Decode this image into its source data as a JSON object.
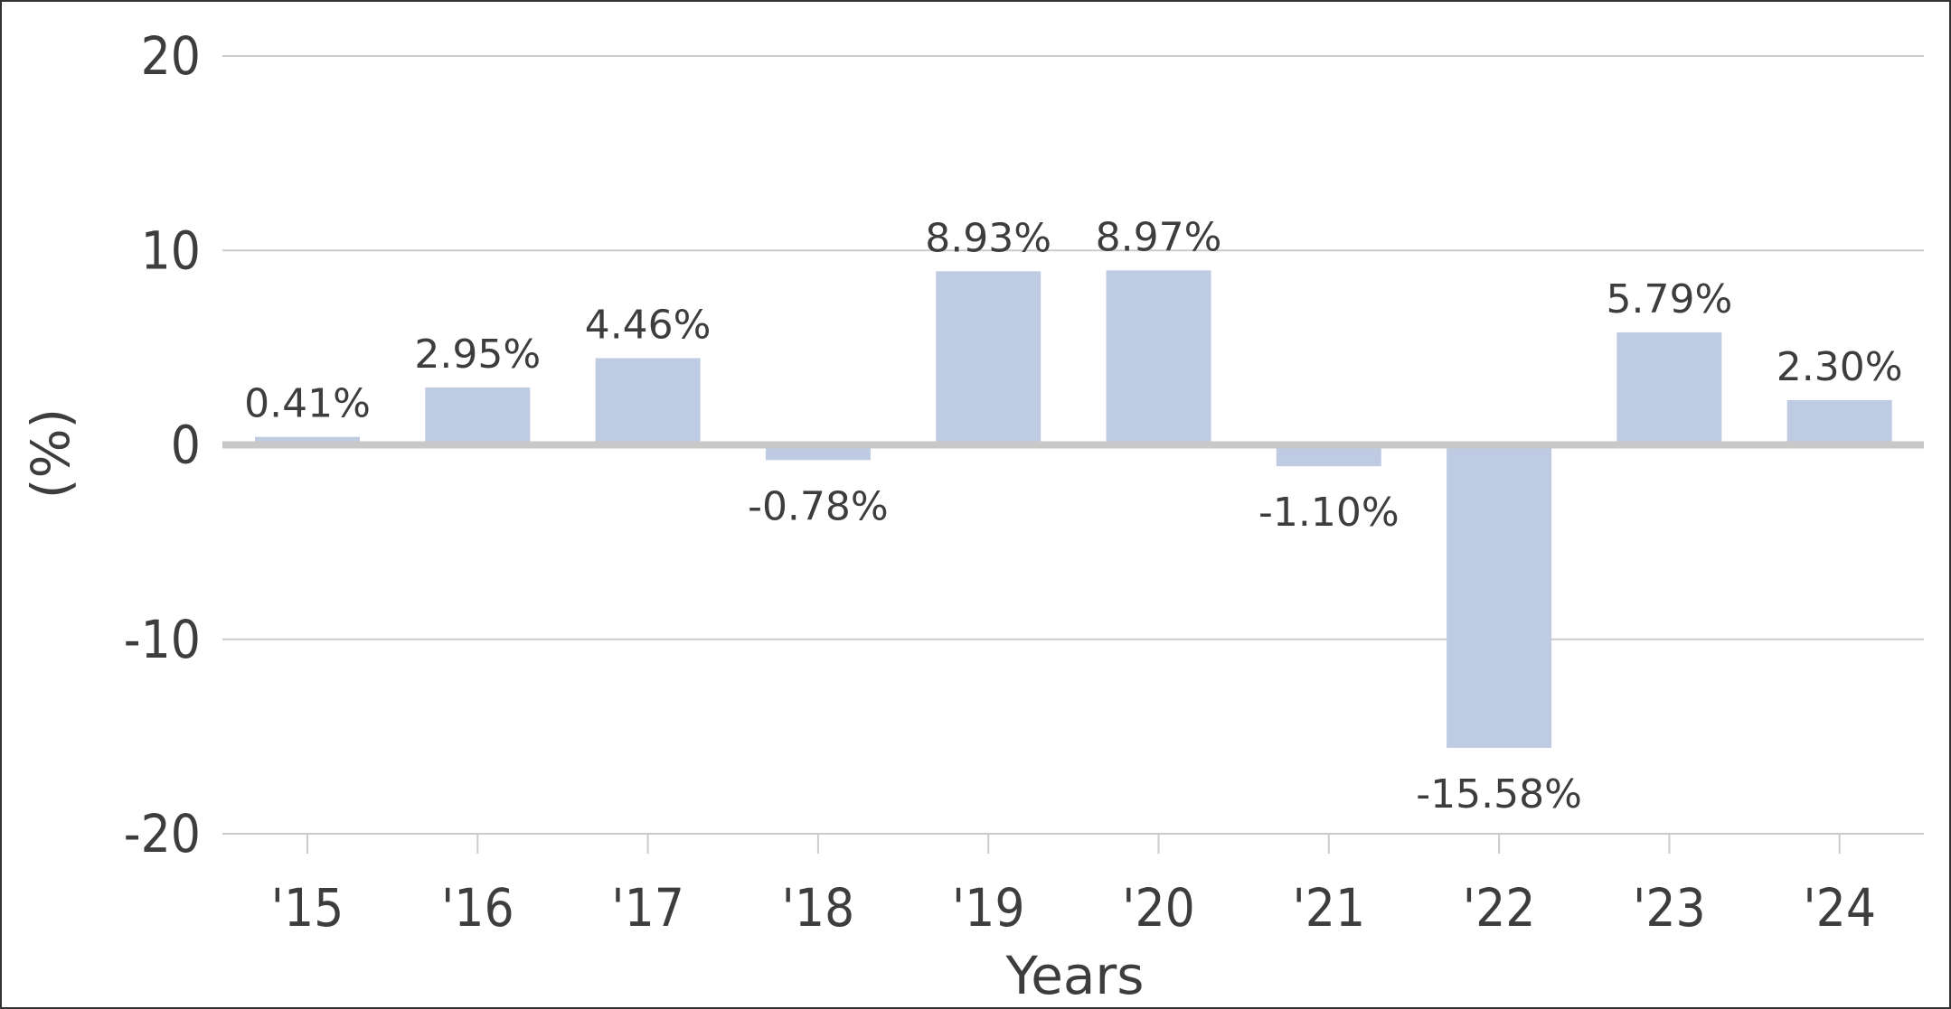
{
  "chart_data": {
    "type": "bar",
    "categories": [
      "'15",
      "'16",
      "'17",
      "'18",
      "'19",
      "'20",
      "'21",
      "'22",
      "'23",
      "'24"
    ],
    "values": [
      0.41,
      2.95,
      4.46,
      -0.78,
      8.93,
      8.97,
      -1.1,
      -15.58,
      5.79,
      2.3
    ],
    "data_labels": [
      "0.41%",
      "2.95%",
      "4.46%",
      "-0.78%",
      "8.93%",
      "8.97%",
      "-1.10%",
      "-15.58%",
      "5.79%",
      "2.30%"
    ],
    "xlabel": "Years",
    "ylabel": "(%)",
    "ylim": [
      -20,
      20
    ],
    "yticks": [
      20,
      10,
      0,
      -10,
      -20
    ],
    "ytick_labels": [
      "20",
      "10",
      "0",
      "-10",
      "-20"
    ],
    "grid": true,
    "colors": {
      "bar": "#bfcbe2",
      "grid": "#cccccc",
      "zero_line": "#c8c8c8",
      "text": "#3d3d3d",
      "frame": "#333333"
    }
  }
}
